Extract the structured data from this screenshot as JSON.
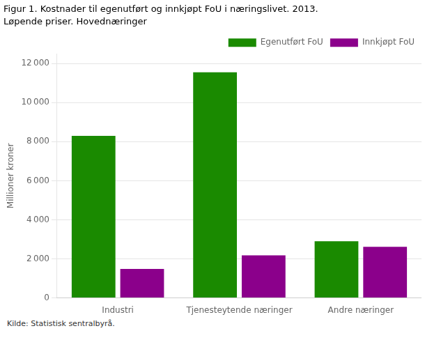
{
  "chart_data": {
    "type": "bar",
    "title": "Figur 1. Kostnader til egenutført og innkjøpt FoU i næringslivet. 2013.",
    "subtitle": "Løpende priser. Hovednæringer",
    "ylabel": "Millioner kroner",
    "source": "Kilde: Statistisk sentralbyrå.",
    "categories": [
      "Industri",
      "Tjenesteytende næringer",
      "Andre næringer"
    ],
    "series": [
      {
        "name": "Egenutført FoU",
        "color": "#1a8a00",
        "values": [
          8300,
          11550,
          2900
        ]
      },
      {
        "name": "Innkjøpt FoU",
        "color": "#8b008b",
        "values": [
          1480,
          2180,
          2620
        ]
      }
    ],
    "ylim": [
      0,
      12500
    ],
    "yticks": [
      0,
      {
        "value": 2000,
        "label": "2 000"
      },
      {
        "value": 4000,
        "label": "4 000"
      },
      {
        "value": 6000,
        "label": "6 000"
      },
      {
        "value": 8000,
        "label": "8 000"
      },
      {
        "value": 10000,
        "label": "10 000"
      },
      {
        "value": 12000,
        "label": "12 000"
      }
    ],
    "grid": true,
    "legend": "upper right"
  }
}
